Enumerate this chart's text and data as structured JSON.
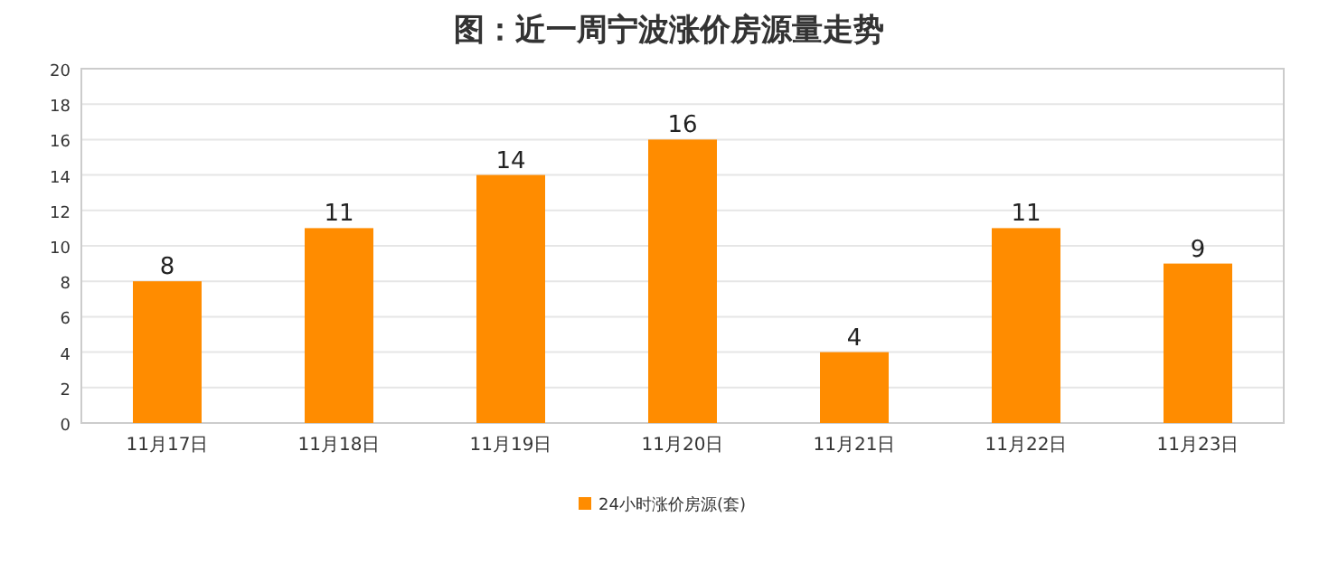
{
  "chart_data": {
    "type": "bar",
    "title": "图：近一周宁波涨价房源量走势",
    "categories": [
      "11月17日",
      "11月18日",
      "11月19日",
      "11月20日",
      "11月21日",
      "11月22日",
      "11月23日"
    ],
    "series": [
      {
        "name": "24小时涨价房源(套)",
        "color": "#ff8c00",
        "values": [
          8,
          11,
          14,
          16,
          4,
          11,
          9
        ]
      }
    ],
    "ylim": [
      0,
      20
    ],
    "yticks": [
      0,
      2,
      4,
      6,
      8,
      10,
      12,
      14,
      16,
      18,
      20
    ],
    "grid": "y",
    "legend": "bottom",
    "data_labels": true
  }
}
